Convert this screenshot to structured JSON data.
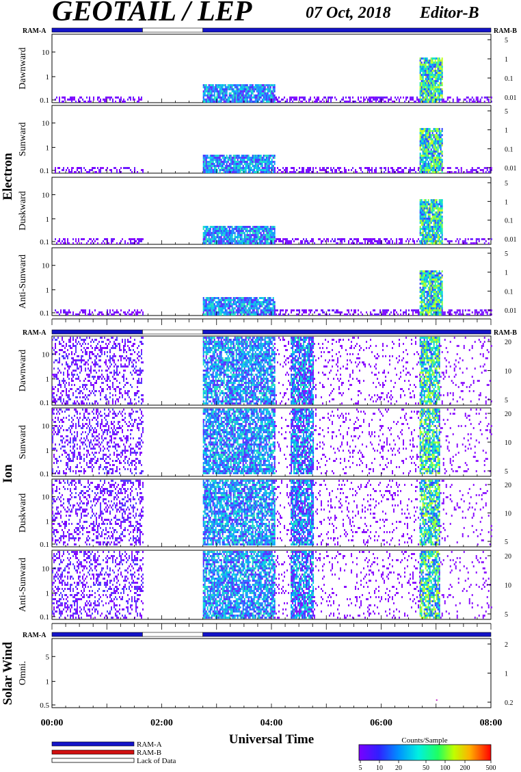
{
  "header": {
    "title": "GEOTAIL / LEP",
    "date": "07 Oct, 2018",
    "editor": "Editor-B"
  },
  "labels": {
    "ram_a": "RAM-A",
    "ram_b": "RAM-B"
  },
  "groups": {
    "electron": "Electron",
    "ion": "Ion",
    "solar_wind": "Solar Wind"
  },
  "xaxis": {
    "title": "Universal Time",
    "ticks": [
      "00:00",
      "02:00",
      "04:00",
      "06:00",
      "08:00"
    ]
  },
  "legend": {
    "items": [
      "RAM-A",
      "RAM-B",
      "Lack of Data"
    ],
    "colors": {
      "ram_a": "#1414c8",
      "ram_b": "#d01010",
      "lack": "#ffffff"
    }
  },
  "colorbar": {
    "title": "Counts/Sample",
    "ticks": [
      "5",
      "10",
      "20",
      "50",
      "100",
      "200",
      "500"
    ]
  },
  "chart_data": {
    "type": "heatmap",
    "time_range_hours": [
      0,
      8
    ],
    "gap_hours": [
      1.65,
      2.75
    ],
    "ram_bar": [
      {
        "from": 0,
        "to": 1.65,
        "state": "RAM-A"
      },
      {
        "from": 1.65,
        "to": 2.75,
        "state": "Lack of Data"
      },
      {
        "from": 2.75,
        "to": 8,
        "state": "RAM-A"
      }
    ],
    "panels": [
      {
        "group": "Electron",
        "label": "Dawnward",
        "left_ticks": [
          "10",
          "1",
          "0.1"
        ],
        "right_ticks": [
          "5",
          "1",
          "0.1",
          "0.01"
        ]
      },
      {
        "group": "Electron",
        "label": "Sunward",
        "left_ticks": [
          "10",
          "1",
          "0.1"
        ],
        "right_ticks": [
          "5",
          "1",
          "0.1",
          "0.01"
        ]
      },
      {
        "group": "Electron",
        "label": "Duskward",
        "left_ticks": [
          "10",
          "1",
          "0.1"
        ],
        "right_ticks": [
          "5",
          "1",
          "0.1",
          "0.01"
        ]
      },
      {
        "group": "Electron",
        "label": "Anti-Sunward",
        "left_ticks": [
          "10",
          "1",
          "0.1"
        ],
        "right_ticks": [
          "5",
          "1",
          "0.1",
          "0.01"
        ]
      },
      {
        "group": "Ion",
        "label": "Dawnward",
        "left_ticks": [
          "10",
          "1",
          "0.1"
        ],
        "right_ticks": [
          "20",
          "10",
          "5"
        ]
      },
      {
        "group": "Ion",
        "label": "Sunward",
        "left_ticks": [
          "10",
          "1",
          "0.1"
        ],
        "right_ticks": [
          "20",
          "10",
          "5"
        ]
      },
      {
        "group": "Ion",
        "label": "Duskward",
        "left_ticks": [
          "10",
          "1",
          "0.1"
        ],
        "right_ticks": [
          "20",
          "10",
          "5"
        ]
      },
      {
        "group": "Ion",
        "label": "Anti-Sunward",
        "left_ticks": [
          "10",
          "1",
          "0.1"
        ],
        "right_ticks": [
          "20",
          "10",
          "5"
        ]
      },
      {
        "group": "Solar Wind",
        "label": "Omni.",
        "left_ticks": [
          "5",
          "1",
          "0.5"
        ],
        "right_ticks": [
          "2",
          "1",
          "0.2"
        ]
      }
    ],
    "electron_activity": [
      {
        "from": 0.05,
        "to": 1.65,
        "level": "low"
      },
      {
        "from": 2.75,
        "to": 4.05,
        "level": "moderate"
      },
      {
        "from": 4.05,
        "to": 6.7,
        "level": "low"
      },
      {
        "from": 6.7,
        "to": 7.1,
        "level": "high"
      },
      {
        "from": 7.1,
        "to": 8.0,
        "level": "low"
      }
    ],
    "ion_activity": [
      {
        "from": 0.0,
        "to": 1.65,
        "level": "scattered"
      },
      {
        "from": 2.75,
        "to": 4.05,
        "level": "moderate"
      },
      {
        "from": 4.35,
        "to": 4.75,
        "level": "moderate"
      },
      {
        "from": 6.7,
        "to": 7.05,
        "level": "high"
      }
    ],
    "xlabel": "Universal Time"
  }
}
